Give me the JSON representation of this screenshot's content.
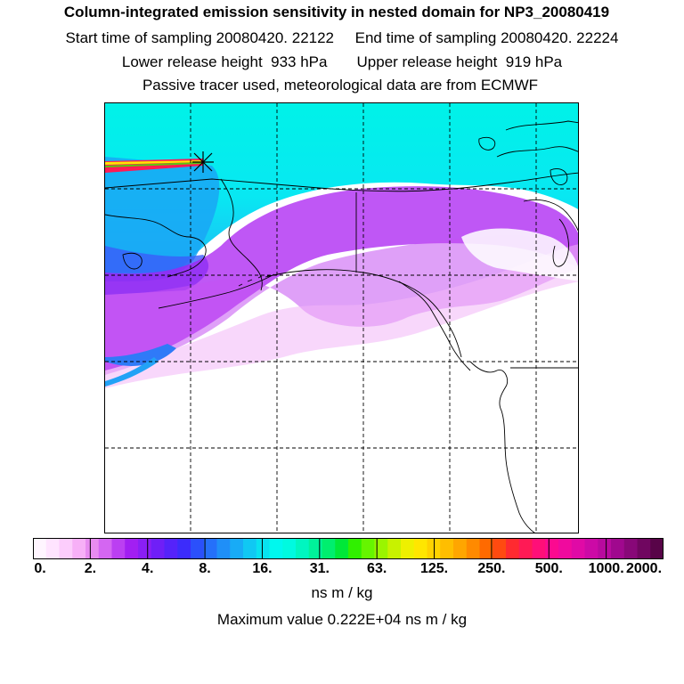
{
  "header": {
    "title": "Column-integrated emission sensitivity in nested domain for NP3_20080419",
    "sampling_line": "Start time of sampling 20080420. 22122     End time of sampling 20080420. 22224",
    "height_line": "Lower release height  933 hPa       Upper release height  919 hPa",
    "tracer_line": "Passive tracer used, meteorological data are from ECMWF"
  },
  "map": {
    "description_icon": "release-point-marker-icon"
  },
  "colorbar": {
    "unit_label": "ns m / kg",
    "max_value_line": "Maximum value  0.222E+04 ns m / kg",
    "tick_labels": [
      "0.",
      "2.",
      "4.",
      "8.",
      "16.",
      "31.",
      "63.",
      "125.",
      "250.",
      "500.",
      "1000.",
      "2000."
    ],
    "colors": [
      "#fff5ff",
      "#ffe4ff",
      "#fccdfc",
      "#f7b0f7",
      "#e88cf0",
      "#d466f2",
      "#bb3ff2",
      "#a21ff2",
      "#8a1ff5",
      "#6f1ff7",
      "#5523fa",
      "#3c2cfb",
      "#2b50fb",
      "#2570fa",
      "#1f8ff8",
      "#18abf6",
      "#10c8f3",
      "#08e2f0",
      "#00f8ee",
      "#00fae0",
      "#00f6c0",
      "#00f29a",
      "#00ee6e",
      "#00e838",
      "#30f000",
      "#66f500",
      "#9af500",
      "#c8f200",
      "#eef000",
      "#ffe600",
      "#ffd200",
      "#ffbe00",
      "#ffa600",
      "#ff8a00",
      "#ff6a00",
      "#ff4a10",
      "#ff2a30",
      "#ff1a55",
      "#ff0f78",
      "#fb0a90",
      "#f00a9e",
      "#e00aa6",
      "#cc0aa6",
      "#b80a9e",
      "#a0088e",
      "#880878",
      "#700660",
      "#580448"
    ]
  }
}
